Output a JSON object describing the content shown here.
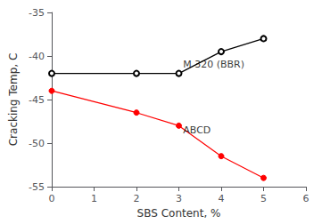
{
  "chart_data": {
    "type": "line",
    "xlabel": "SBS Content, %",
    "ylabel": "Cracking Temp, C",
    "x": [
      0,
      2,
      3,
      4,
      5
    ],
    "series": [
      {
        "color": "black",
        "marker": "open_circle",
        "values": [
          -42,
          -42,
          -42,
          -39.5,
          -38
        ]
      },
      {
        "color": "red",
        "marker": "circle",
        "values": [
          -44,
          -46.5,
          -48,
          -51.5,
          -54
        ]
      }
    ],
    "annotations": [
      {
        "text": "M 320 (BBR)",
        "x": 3.1,
        "y": -41.0
      },
      {
        "text": "ABCD",
        "x": 3.1,
        "y": -48.5
      }
    ],
    "xlim": [
      0,
      6
    ],
    "xticks": [
      0,
      1,
      2,
      3,
      4,
      5,
      6
    ],
    "ylim": [
      -55,
      -35
    ],
    "yticks": [
      -55,
      -50,
      -45,
      -40,
      -35
    ],
    "grid": false
  }
}
